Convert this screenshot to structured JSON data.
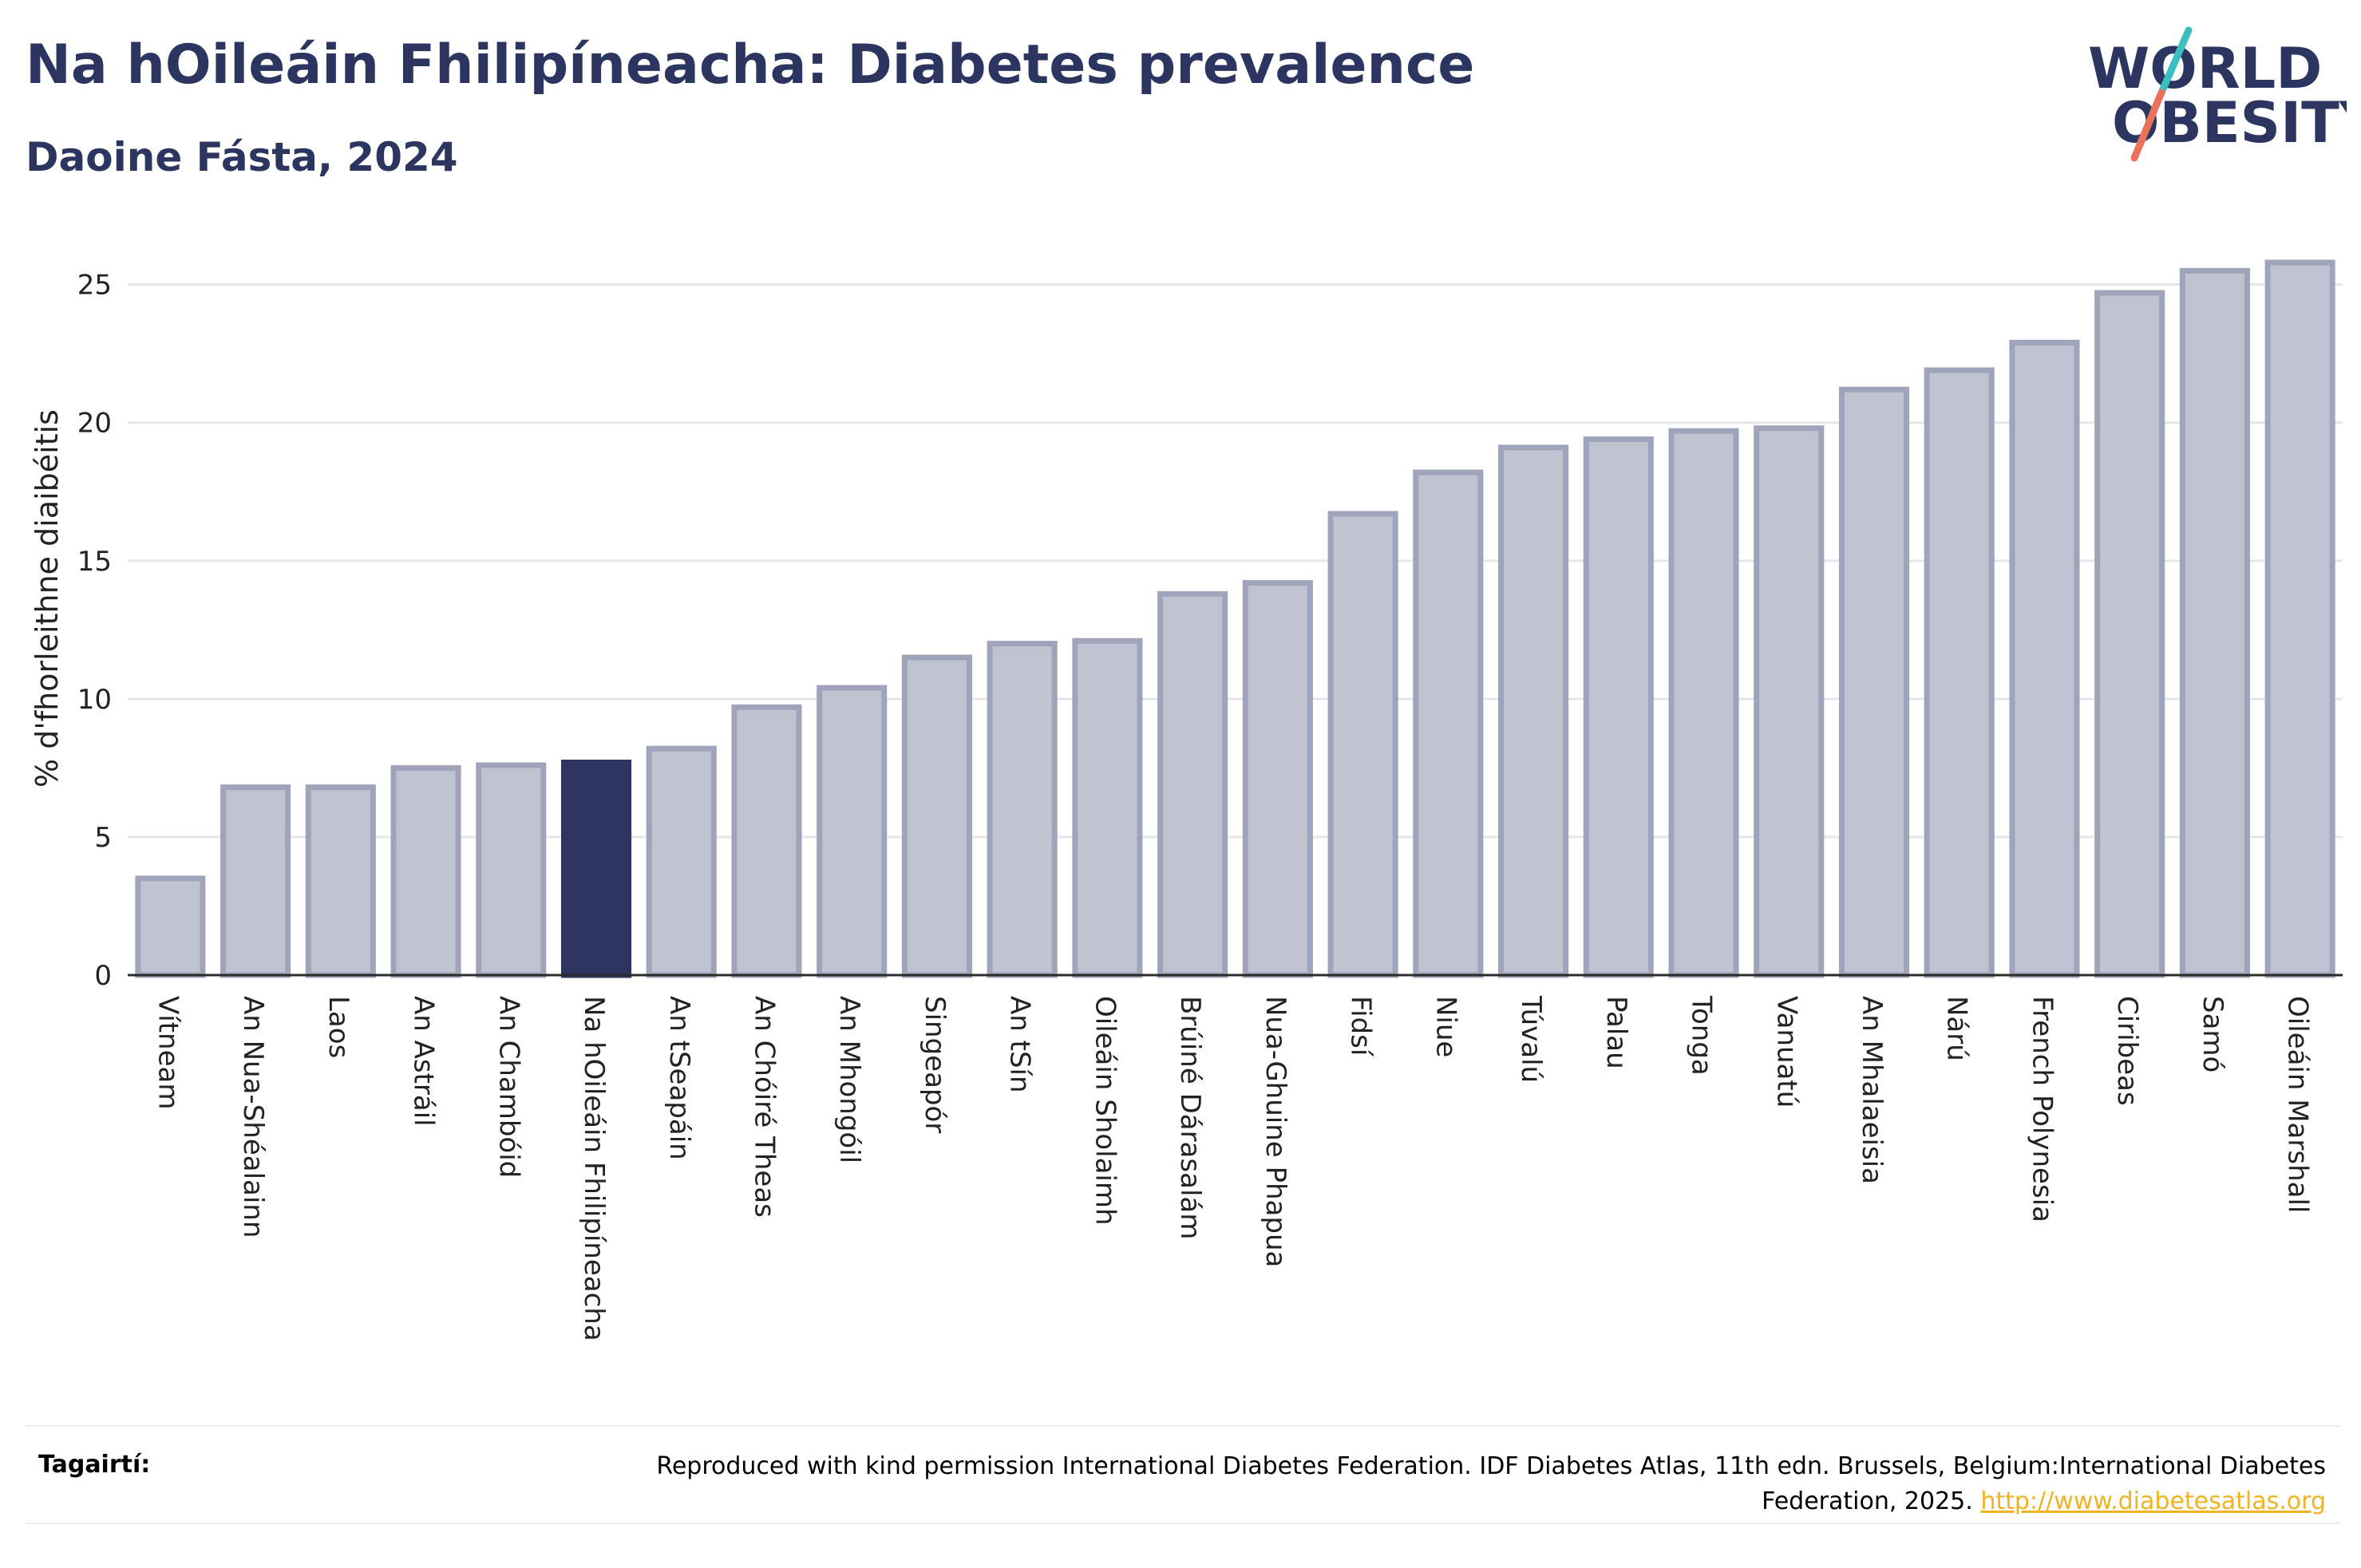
{
  "header": {
    "title": "Na hOileáin Fhilipíneacha: Diabetes prevalence",
    "subtitle": "Daoine Fásta, 2024"
  },
  "logo": {
    "line1": "WORLD",
    "line2": "OBESITY",
    "colors": {
      "text": "#2b3560",
      "slash_teal": "#3bbfbf",
      "slash_coral": "#e8735a"
    }
  },
  "chart_data": {
    "type": "bar",
    "ylabel": "% d'fhorleithne diaibéitis",
    "xlabel": "",
    "ylim": [
      0,
      26
    ],
    "yticks": [
      0,
      5,
      10,
      15,
      20,
      25
    ],
    "grid": true,
    "highlight_category": "Na hOileáin Fhilipíneacha",
    "colors": {
      "bar_fill": "#bfc2cf",
      "bar_stroke": "#9fa4bb",
      "highlight": "#2b3560",
      "grid": "#e6e6ea",
      "axis": "#2b2b2b"
    },
    "categories": [
      "Vítneam",
      "An Nua-Shéalainn",
      "Laos",
      "An Astráil",
      "An Chambóid",
      "Na hOileáin Fhilipíneacha",
      "An tSeapáin",
      "An Chóiré Theas",
      "An Mhongóil",
      "Singeapór",
      "An tSín",
      "Oileáin Sholaimh",
      "Brúiné Dárasalám",
      "Nua-Ghuine Phapua",
      "Fidsí",
      "Niue",
      "Túvalú",
      "Palau",
      "Tonga",
      "Vanuatú",
      "An Mhalaeisia",
      "Nárú",
      "French Polynesia",
      "Ciribeas",
      "Samó",
      "Oileáin Marshall"
    ],
    "values": [
      3.5,
      6.8,
      6.8,
      7.5,
      7.6,
      7.7,
      8.2,
      9.7,
      10.4,
      11.5,
      12.0,
      12.1,
      13.8,
      14.2,
      16.7,
      18.2,
      19.1,
      19.4,
      19.7,
      19.8,
      21.2,
      21.9,
      22.9,
      24.7,
      25.5,
      25.8
    ]
  },
  "footer": {
    "label": "Tagairtí:",
    "text": "Reproduced with kind permission International Diabetes Federation. IDF Diabetes Atlas, 11th edn. Brussels, Belgium:International Diabetes Federation, 2025.",
    "link": "http://www.diabetesatlas.org"
  }
}
